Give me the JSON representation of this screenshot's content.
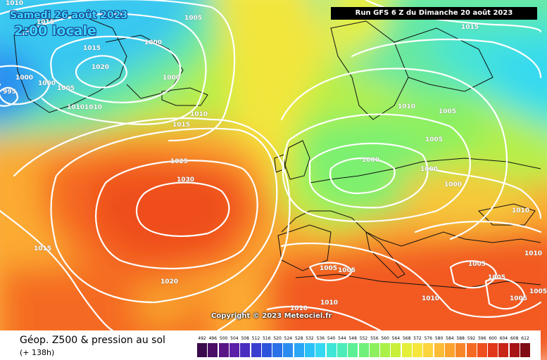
{
  "header": {
    "date": "Samedi 26 août 2023",
    "time": "2:00 locale",
    "run": "Run GFS 6 Z du Dimanche 20 août 2023",
    "copyright": "Copyright © 2023 Meteociel.fr"
  },
  "footer": {
    "title": "Géop. Z500 & pression au sol",
    "subtitle": "(+ 138h)"
  },
  "legend": {
    "ticks": [
      "492",
      "496",
      "500",
      "504",
      "508",
      "512",
      "516",
      "520",
      "524",
      "528",
      "532",
      "536",
      "540",
      "544",
      "548",
      "552",
      "556",
      "560",
      "564",
      "568",
      "572",
      "576",
      "580",
      "584",
      "588",
      "592",
      "596",
      "600",
      "604",
      "608",
      "612"
    ],
    "colors": [
      "#3a0a4a",
      "#4b0f66",
      "#5a1585",
      "#5b1fa8",
      "#4a2ec0",
      "#3b3fd0",
      "#2c55dc",
      "#2a70e6",
      "#2a8cf0",
      "#2aa6f5",
      "#2cc0f8",
      "#34d8f2",
      "#3fe6d8",
      "#4cecb8",
      "#5cf095",
      "#6ff07a",
      "#8cf05e",
      "#aaf046",
      "#c8f03a",
      "#e4ef3a",
      "#f6e63c",
      "#fcd43c",
      "#fcbc36",
      "#fba22f",
      "#f88628",
      "#f56a22",
      "#ef4e1e",
      "#e2361b",
      "#c92418",
      "#a81416",
      "#7f0c14"
    ]
  },
  "map": {
    "isobars": [
      {
        "text": "1010",
        "pos": "8,6"
      },
      {
        "text": "1015",
        "pos": "52,33"
      },
      {
        "text": "1005",
        "pos": "262,27"
      },
      {
        "text": "1000",
        "pos": "205,62"
      },
      {
        "text": "1015",
        "pos": "118,70"
      },
      {
        "text": "1020",
        "pos": "130,97"
      },
      {
        "text": "1000",
        "pos": "22,112"
      },
      {
        "text": "1000",
        "pos": "54,120"
      },
      {
        "text": "1005",
        "pos": "81,127"
      },
      {
        "text": "995",
        "pos": "4,132"
      },
      {
        "text": "1000",
        "pos": "231,112"
      },
      {
        "text": "1010",
        "pos": "95,154"
      },
      {
        "text": "1010",
        "pos": "120,154"
      },
      {
        "text": "1010",
        "pos": "270,164"
      },
      {
        "text": "1015",
        "pos": "245,179"
      },
      {
        "text": "1025",
        "pos": "242,231"
      },
      {
        "text": "1030",
        "pos": "251,257"
      },
      {
        "text": "1015",
        "pos": "48,355"
      },
      {
        "text": "1020",
        "pos": "228,402"
      },
      {
        "text": "1015",
        "pos": "655,40"
      },
      {
        "text": "1010",
        "pos": "565,153"
      },
      {
        "text": "1005",
        "pos": "623,160"
      },
      {
        "text": "1005",
        "pos": "604,200"
      },
      {
        "text": "1000",
        "pos": "514,229"
      },
      {
        "text": "1000",
        "pos": "597,242"
      },
      {
        "text": "1000",
        "pos": "631,264"
      },
      {
        "text": "1010",
        "pos": "727,301"
      },
      {
        "text": "1010",
        "pos": "745,362"
      },
      {
        "text": "1005",
        "pos": "665,377"
      },
      {
        "text": "1005",
        "pos": "693,396"
      },
      {
        "text": "1005",
        "pos": "454,383"
      },
      {
        "text": "1005",
        "pos": "480,386"
      },
      {
        "text": "1010",
        "pos": "455,432"
      },
      {
        "text": "1010",
        "pos": "599,426"
      },
      {
        "text": "1005",
        "pos": "724,426"
      },
      {
        "text": "1005",
        "pos": "752,416"
      },
      {
        "text": "1010",
        "pos": "412,440"
      }
    ]
  }
}
